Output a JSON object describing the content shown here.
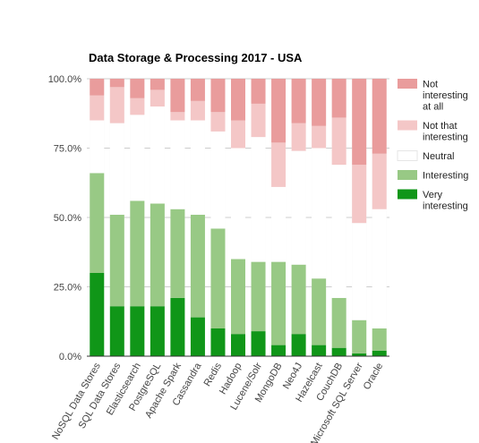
{
  "chart_data": {
    "type": "bar",
    "stacked": true,
    "title": "Data Storage & Processing 2017 - USA",
    "xlabel": "",
    "ylabel": "",
    "ylim": [
      0,
      100
    ],
    "y_tick_labels": [
      "0.0%",
      "25.0%",
      "50.0%",
      "75.0%",
      "100.0%"
    ],
    "y_ticks": [
      0,
      25,
      50,
      75,
      100
    ],
    "grid": true,
    "legend_position": "right",
    "categories": [
      "NoSQL Data Stores",
      "SQL Data Stores",
      "Elasticsearch",
      "PostgreSQL",
      "Apache Spark",
      "Cassandra",
      "Redis",
      "Hadoop",
      "Lucene/Solr",
      "MongoDB",
      "Neo4J",
      "Hazelcast",
      "CouchDB",
      "Microsoft SQL Server",
      "Oracle"
    ],
    "series": [
      {
        "name": "Very interesting",
        "color": "#109618",
        "values": [
          30,
          18,
          18,
          18,
          21,
          14,
          10,
          8,
          9,
          4,
          8,
          4,
          3,
          1,
          2
        ]
      },
      {
        "name": "Interesting",
        "color": "#98c985",
        "values": [
          36,
          33,
          38,
          37,
          32,
          37,
          36,
          27,
          25,
          30,
          25,
          24,
          18,
          12,
          8
        ]
      },
      {
        "name": "Neutral",
        "color": "#ffffff",
        "values": [
          19,
          33,
          31,
          35,
          32,
          34,
          35,
          40,
          45,
          27,
          41,
          47,
          48,
          35,
          43
        ]
      },
      {
        "name": "Not that interesting",
        "color": "#f4c7c7",
        "values": [
          9,
          13,
          6,
          6,
          3,
          7,
          7,
          10,
          12,
          16,
          10,
          8,
          17,
          21,
          20
        ]
      },
      {
        "name": "Not interesting at all",
        "color": "#e99c9c",
        "values": [
          6,
          3,
          7,
          4,
          12,
          8,
          12,
          15,
          9,
          23,
          16,
          17,
          14,
          31,
          27
        ]
      }
    ],
    "legend": [
      {
        "lines": [
          "Not",
          "interesting",
          "at all"
        ],
        "color": "#e99c9c"
      },
      {
        "lines": [
          "Not that",
          "interesting"
        ],
        "color": "#f4c7c7"
      },
      {
        "lines": [
          "Neutral"
        ],
        "color": "#ffffff"
      },
      {
        "lines": [
          "Interesting"
        ],
        "color": "#98c985"
      },
      {
        "lines": [
          "Very",
          "interesting"
        ],
        "color": "#109618"
      }
    ],
    "background_bar_color": "#efefef",
    "gridline_color": "#cccccc",
    "axis_color": "#333333"
  }
}
